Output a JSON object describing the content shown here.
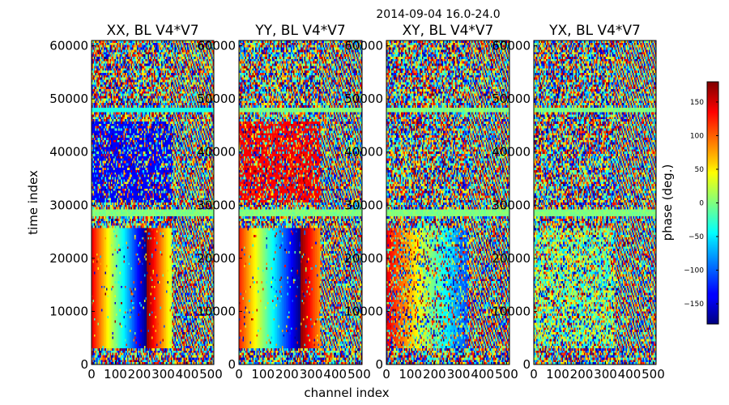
{
  "chart_data": {
    "type": "heatmap",
    "suptitle": "2014-09-04 16.0-24.0",
    "xlabel": "channel index",
    "ylabel": "time index",
    "xlim": [
      0,
      512
    ],
    "ylim": [
      0,
      61000
    ],
    "xticks": [
      "0",
      "100",
      "200",
      "300",
      "400",
      "500"
    ],
    "yticks": [
      "0",
      "10000",
      "20000",
      "30000",
      "40000",
      "50000",
      "60000"
    ],
    "colormap": "jet",
    "panels": [
      {
        "title": "XX, BL V4*V7",
        "id": "xx"
      },
      {
        "title": "YY, BL V4*V7",
        "id": "yy"
      },
      {
        "title": "XY, BL V4*V7",
        "id": "xy"
      },
      {
        "title": "YX, BL V4*V7",
        "id": "yx"
      }
    ],
    "colorbar": {
      "label": "phase (deg.)",
      "range": [
        -180,
        180
      ],
      "ticks": [
        "150",
        "100",
        "50",
        "0",
        "−50",
        "−100",
        "−150"
      ],
      "tick_values": [
        150,
        100,
        50,
        0,
        -50,
        -100,
        -150
      ]
    }
  }
}
